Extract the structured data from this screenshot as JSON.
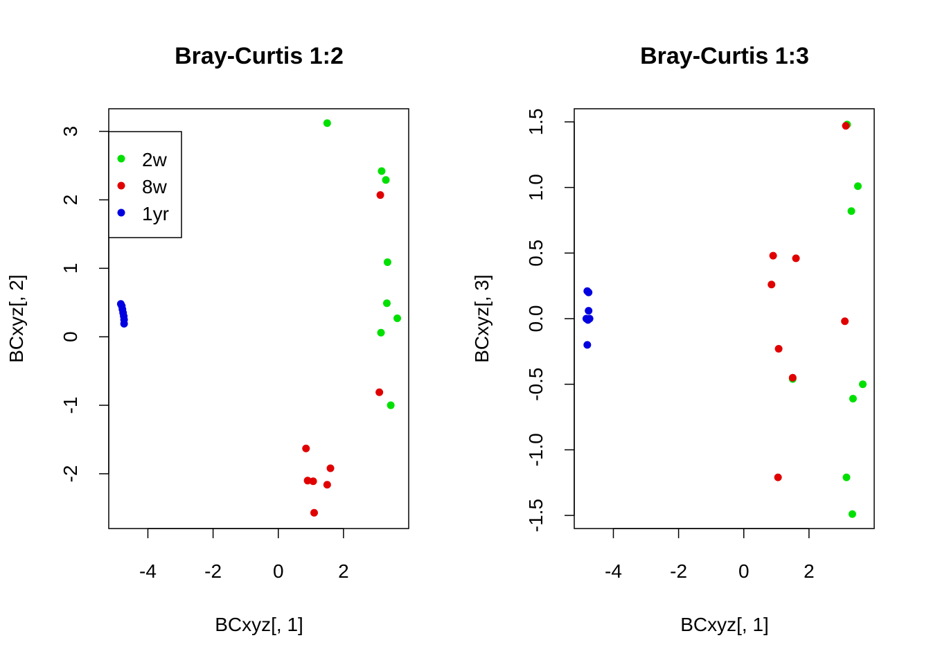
{
  "chart_data": [
    {
      "type": "scatter",
      "title": "Bray-Curtis 1:2",
      "xlabel": "BCxyz[, 1]",
      "ylabel": "BCxyz[, 2]",
      "xlim": [
        -5.2,
        4.0
      ],
      "ylim": [
        -2.8,
        3.33
      ],
      "xticks": [
        -4,
        -2,
        0,
        2
      ],
      "yticks": [
        -2,
        -1,
        0,
        1,
        2,
        3
      ],
      "grid": false,
      "legend": {
        "position": "top-left",
        "entries": [
          {
            "label": "2w",
            "color": "#00e000"
          },
          {
            "label": "8w",
            "color": "#e00000"
          },
          {
            "label": "1yr",
            "color": "#0000e0"
          }
        ]
      },
      "series": [
        {
          "color": "#00e000",
          "x": [
            1.5,
            3.17,
            3.3,
            3.35,
            3.33,
            3.65,
            3.15,
            3.45
          ],
          "y": [
            3.12,
            2.42,
            2.29,
            1.09,
            0.49,
            0.27,
            0.06,
            -1.0
          ]
        },
        {
          "color": "#e00000",
          "x": [
            3.13,
            3.1,
            0.85,
            1.6,
            0.9,
            1.07,
            1.5,
            1.1
          ],
          "y": [
            2.07,
            -0.81,
            -1.63,
            -1.92,
            -2.1,
            -2.11,
            -2.16,
            -2.57
          ]
        },
        {
          "color": "#0000e0",
          "x": [
            -4.83,
            -4.8,
            -4.78,
            -4.76,
            -4.74,
            -4.73,
            -4.73
          ],
          "y": [
            0.48,
            0.45,
            0.4,
            0.35,
            0.3,
            0.25,
            0.19
          ]
        }
      ]
    },
    {
      "type": "scatter",
      "title": "Bray-Curtis 1:3",
      "xlabel": "BCxyz[, 1]",
      "ylabel": "BCxyz[, 3]",
      "xlim": [
        -5.2,
        4.0
      ],
      "ylim": [
        -1.6,
        1.6
      ],
      "xticks": [
        -4,
        -2,
        0,
        2
      ],
      "yticks": [
        -1.5,
        -1.0,
        -0.5,
        0.0,
        0.5,
        1.0,
        1.5
      ],
      "ytick_labels": [
        "-1.5",
        "-1.0",
        "-0.5",
        "0.0",
        "0.5",
        "1.0",
        "1.5"
      ],
      "grid": false,
      "series": [
        {
          "color": "#00e000",
          "x": [
            3.17,
            3.5,
            3.3,
            1.5,
            3.65,
            3.35,
            3.15,
            3.33
          ],
          "y": [
            1.48,
            1.01,
            0.82,
            -0.46,
            -0.5,
            -0.61,
            -1.21,
            -1.49
          ]
        },
        {
          "color": "#e00000",
          "x": [
            3.13,
            0.9,
            1.6,
            0.85,
            3.1,
            1.07,
            1.5,
            1.05
          ],
          "y": [
            1.47,
            0.48,
            0.46,
            0.26,
            -0.02,
            -0.23,
            -0.45,
            -1.21
          ]
        },
        {
          "color": "#0000e0",
          "x": [
            -4.8,
            -4.76,
            -4.76,
            -4.83,
            -4.73,
            -4.78,
            -4.8
          ],
          "y": [
            0.21,
            0.2,
            0.06,
            0.0,
            0.0,
            -0.01,
            -0.2
          ]
        }
      ]
    }
  ]
}
